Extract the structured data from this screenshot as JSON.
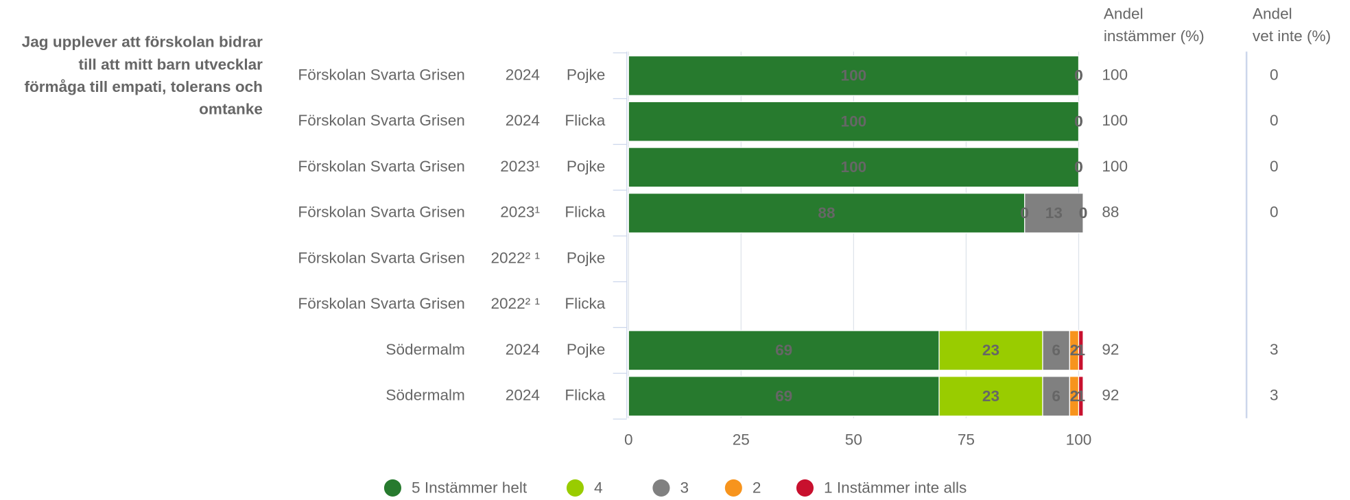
{
  "chart_data": {
    "type": "stacked_barh",
    "question_lines": [
      "Jag upplever att förskolan bidrar",
      "till att mitt barn utvecklar",
      "förmåga till empati, tolerans och",
      "omtanke"
    ],
    "row_labels": {
      "units": [
        "Förskolan Svarta Grisen",
        "Förskolan Svarta Grisen",
        "Förskolan Svarta Grisen",
        "Förskolan Svarta Grisen",
        "Förskolan Svarta Grisen",
        "Förskolan Svarta Grisen",
        "Södermalm",
        "Södermalm"
      ],
      "years": [
        "2024",
        "2024",
        "2023¹",
        "2023¹",
        "2022² ¹",
        "2022² ¹",
        "2024",
        "2024"
      ],
      "genders": [
        "Pojke",
        "Flicka",
        "Pojke",
        "Flicka",
        "Pojke",
        "Flicka",
        "Pojke",
        "Flicka"
      ]
    },
    "series": [
      {
        "name": "5 Instämmer helt",
        "color": "#277a2e",
        "label_color": "#ffffff",
        "values": [
          100,
          100,
          100,
          88,
          null,
          null,
          69,
          69
        ]
      },
      {
        "name": "4",
        "color": "#99cc00",
        "label_color": "#111111",
        "values": [
          0,
          0,
          0,
          0,
          null,
          null,
          23,
          23
        ]
      },
      {
        "name": "3",
        "color": "#808080",
        "label_color": "#111111",
        "values": [
          0,
          0,
          0,
          13,
          null,
          null,
          6,
          6
        ]
      },
      {
        "name": "2",
        "color": "#f7941d",
        "label_color": "#111111",
        "values": [
          0,
          0,
          0,
          0,
          null,
          null,
          2,
          2
        ]
      },
      {
        "name": "1 Instämmer inte alls",
        "color": "#c8102e",
        "label_color": "#111111",
        "values": [
          0,
          0,
          0,
          0,
          null,
          null,
          1,
          1
        ]
      }
    ],
    "xlim": [
      0,
      100
    ],
    "xticks": [
      0,
      25,
      50,
      75,
      100
    ],
    "grid": true,
    "columns": [
      {
        "header_lines": [
          "Andel",
          "instämmer (%)"
        ],
        "values": [
          100,
          100,
          100,
          88,
          null,
          null,
          92,
          92
        ]
      },
      {
        "header_lines": [
          "Andel",
          "vet inte (%)"
        ],
        "values": [
          0,
          0,
          0,
          0,
          null,
          null,
          3,
          3
        ]
      }
    ]
  }
}
